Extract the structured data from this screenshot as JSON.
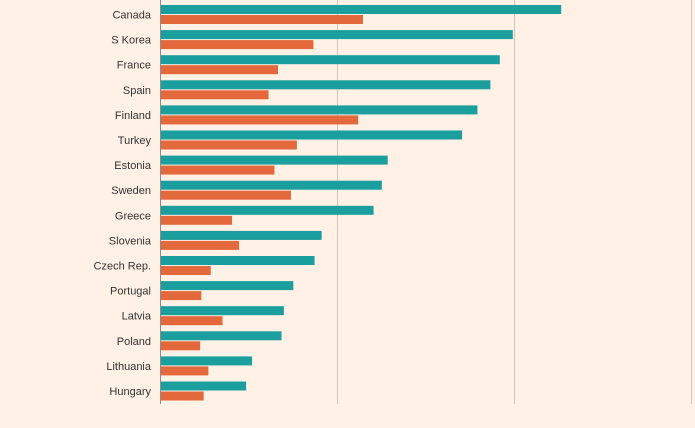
{
  "chart_data": {
    "type": "bar",
    "orientation": "horizontal",
    "title": "",
    "xlabel": "",
    "ylabel": "",
    "grid": true,
    "xlim": [
      0,
      45
    ],
    "gridlines_at": [
      15,
      30,
      45
    ],
    "categories": [
      "Canada",
      "S Korea",
      "France",
      "Spain",
      "Finland",
      "Turkey",
      "Estonia",
      "Sweden",
      "Greece",
      "Slovenia",
      "Czech Rep.",
      "Portugal",
      "Latvia",
      "Poland",
      "Lithuania",
      "Hungary"
    ],
    "series": [
      {
        "color": "#1A9E9E",
        "values": [
          34,
          29.9,
          28.8,
          28,
          26.9,
          25.6,
          19.3,
          18.8,
          18.1,
          13.7,
          13.1,
          11.3,
          10.5,
          10.3,
          7.8,
          7.3
        ]
      },
      {
        "color": "#E3683C",
        "values": [
          17.2,
          13,
          10,
          9.2,
          16.8,
          11.6,
          9.7,
          11.1,
          6.1,
          6.7,
          4.3,
          3.5,
          5.3,
          3.4,
          4.1,
          3.7
        ]
      }
    ]
  }
}
